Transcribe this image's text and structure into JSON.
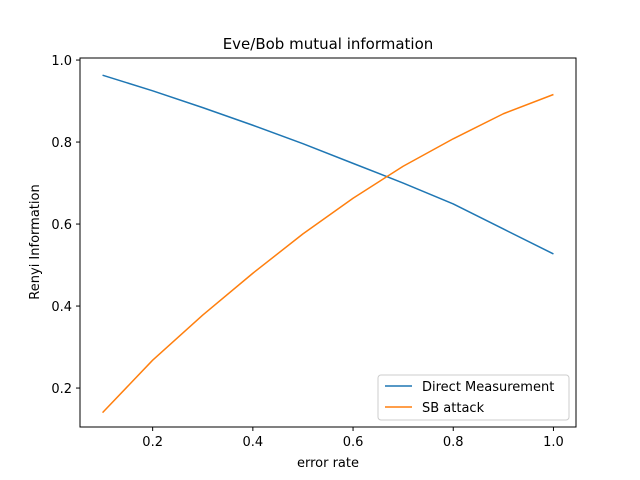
{
  "chart_data": {
    "type": "line",
    "title": "Eve/Bob mutual information",
    "xlabel": "error rate",
    "ylabel": "Renyi Information",
    "xlim": [
      0.055,
      1.045
    ],
    "ylim": [
      0.105,
      1.005
    ],
    "xticks": [
      0.2,
      0.4,
      0.6,
      0.8,
      1.0
    ],
    "xtick_labels": [
      "0.2",
      "0.4",
      "0.6",
      "0.8",
      "1.0"
    ],
    "yticks": [
      0.2,
      0.4,
      0.6,
      0.8,
      1.0
    ],
    "ytick_labels": [
      "0.2",
      "0.4",
      "0.6",
      "0.8",
      "1.0"
    ],
    "grid": false,
    "legend_position": "lower right",
    "x": [
      0.1,
      0.2,
      0.3,
      0.4,
      0.5,
      0.6,
      0.7,
      0.8,
      0.9,
      1.0
    ],
    "series": [
      {
        "name": "Direct Measurement",
        "color": "#1f77b4",
        "values": [
          0.963,
          0.925,
          0.884,
          0.841,
          0.796,
          0.748,
          0.7,
          0.649,
          0.588,
          0.527
        ]
      },
      {
        "name": "SB attack",
        "color": "#ff7f0e",
        "values": [
          0.14,
          0.268,
          0.378,
          0.48,
          0.576,
          0.663,
          0.741,
          0.808,
          0.869,
          0.916
        ]
      }
    ]
  }
}
